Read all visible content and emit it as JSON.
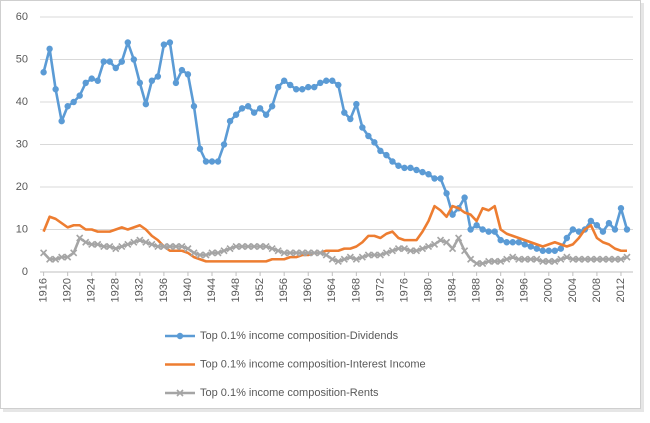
{
  "chart_data": {
    "type": "line",
    "x": [
      1916,
      1917,
      1918,
      1919,
      1920,
      1921,
      1922,
      1923,
      1924,
      1925,
      1926,
      1927,
      1928,
      1929,
      1930,
      1931,
      1932,
      1933,
      1934,
      1935,
      1936,
      1937,
      1938,
      1939,
      1940,
      1941,
      1942,
      1943,
      1944,
      1945,
      1946,
      1947,
      1948,
      1949,
      1950,
      1951,
      1952,
      1953,
      1954,
      1955,
      1956,
      1957,
      1958,
      1959,
      1960,
      1961,
      1962,
      1963,
      1964,
      1965,
      1966,
      1967,
      1968,
      1969,
      1970,
      1971,
      1972,
      1973,
      1974,
      1975,
      1976,
      1977,
      1978,
      1979,
      1980,
      1981,
      1982,
      1983,
      1984,
      1985,
      1986,
      1987,
      1988,
      1989,
      1990,
      1991,
      1992,
      1993,
      1994,
      1995,
      1996,
      1997,
      1998,
      1999,
      2000,
      2001,
      2002,
      2003,
      2004,
      2005,
      2006,
      2007,
      2008,
      2009,
      2010,
      2011,
      2012,
      2013
    ],
    "series": [
      {
        "name": "Top 0.1% income composition-Dividends",
        "color": "#5b9bd5",
        "marker": "circle",
        "values": [
          47,
          52.5,
          43,
          35.5,
          39,
          40,
          41.5,
          44.5,
          45.5,
          45,
          49.5,
          49.5,
          48,
          49.5,
          54,
          50,
          44.5,
          39.5,
          45,
          46,
          53.5,
          54,
          44.5,
          47.5,
          46.5,
          39,
          29,
          26,
          26,
          26,
          30,
          35.5,
          37,
          38.5,
          39,
          37.5,
          38.5,
          37,
          39,
          43.5,
          45,
          44,
          43,
          43,
          43.5,
          43.5,
          44.5,
          45,
          45,
          44,
          37.5,
          36,
          39.5,
          34,
          32,
          30.5,
          28.5,
          27.5,
          26,
          25,
          24.5,
          24.5,
          24,
          23.5,
          23,
          22,
          22,
          18.5,
          13.5,
          15,
          17.5,
          10,
          11,
          10,
          9.5,
          9.5,
          7.5,
          7,
          7,
          7,
          6.5,
          6,
          5.5,
          5,
          5,
          5,
          5.5,
          8,
          10,
          9.5,
          10,
          12,
          11,
          9.5,
          11.5,
          10,
          15,
          10
        ]
      },
      {
        "name": "Top 0.1% income composition-Interest Income",
        "color": "#ed7d31",
        "marker": "none",
        "values": [
          9.5,
          13,
          12.5,
          11.5,
          10.5,
          11,
          11,
          10,
          10,
          9.5,
          9.5,
          9.5,
          10,
          10.5,
          10,
          10.5,
          11,
          10,
          8.5,
          7.5,
          6,
          5,
          5,
          5,
          4.5,
          3.5,
          3,
          2.5,
          2.5,
          2.5,
          2.5,
          2.5,
          2.5,
          2.5,
          2.5,
          2.5,
          2.5,
          2.5,
          3,
          3,
          3,
          3.5,
          3.5,
          4,
          4,
          4.5,
          4.5,
          5,
          5,
          5,
          5.5,
          5.5,
          6,
          7,
          8.5,
          8.5,
          8,
          9,
          9.5,
          8,
          7.5,
          7.5,
          7.5,
          9.5,
          12,
          15.5,
          14.5,
          13,
          15.5,
          15,
          14,
          13.5,
          12,
          15,
          14.5,
          15.5,
          10,
          9,
          8.5,
          8,
          7.5,
          7,
          6.5,
          6,
          6.5,
          7,
          6.5,
          6,
          6.5,
          8,
          10,
          11,
          8,
          7,
          6.5,
          5.5,
          5,
          5
        ]
      },
      {
        "name": "Top 0.1% income composition-Rents",
        "color": "#a5a5a5",
        "marker": "x",
        "values": [
          4.5,
          3,
          3,
          3.5,
          3.5,
          4.5,
          8,
          7,
          6.5,
          6.5,
          6,
          6,
          5.5,
          6,
          6.5,
          7,
          7.5,
          7,
          6.5,
          6,
          6,
          6,
          6,
          6,
          5.5,
          4.5,
          4,
          4,
          4.5,
          4.5,
          5,
          5.5,
          6,
          6,
          6,
          6,
          6,
          6,
          5.5,
          5,
          4.5,
          4.5,
          4.5,
          4.5,
          4.5,
          4.5,
          4.5,
          4,
          3,
          2.5,
          3,
          3.5,
          3,
          3.5,
          4,
          4,
          4,
          4.5,
          5,
          5.5,
          5.5,
          5,
          5,
          5.5,
          6,
          6.5,
          7.5,
          7,
          5.5,
          8,
          5,
          3,
          2,
          2,
          2.5,
          2.5,
          2.5,
          3,
          3.5,
          3,
          3,
          3,
          3,
          2.5,
          2.5,
          2.5,
          3,
          3.5,
          3,
          3,
          3,
          3,
          3,
          3,
          3,
          3,
          3,
          3.5
        ]
      }
    ],
    "xlim": [
      1915.4,
      2014
    ],
    "xticks": [
      1916,
      1920,
      1924,
      1928,
      1932,
      1936,
      1940,
      1944,
      1948,
      1952,
      1956,
      1960,
      1964,
      1968,
      1972,
      1976,
      1980,
      1984,
      1988,
      1992,
      1996,
      2000,
      2004,
      2008,
      2012
    ],
    "ylim": [
      0,
      60
    ],
    "yticks": [
      0,
      10,
      20,
      30,
      40,
      50,
      60
    ],
    "grid": true,
    "legend": "bottom"
  }
}
